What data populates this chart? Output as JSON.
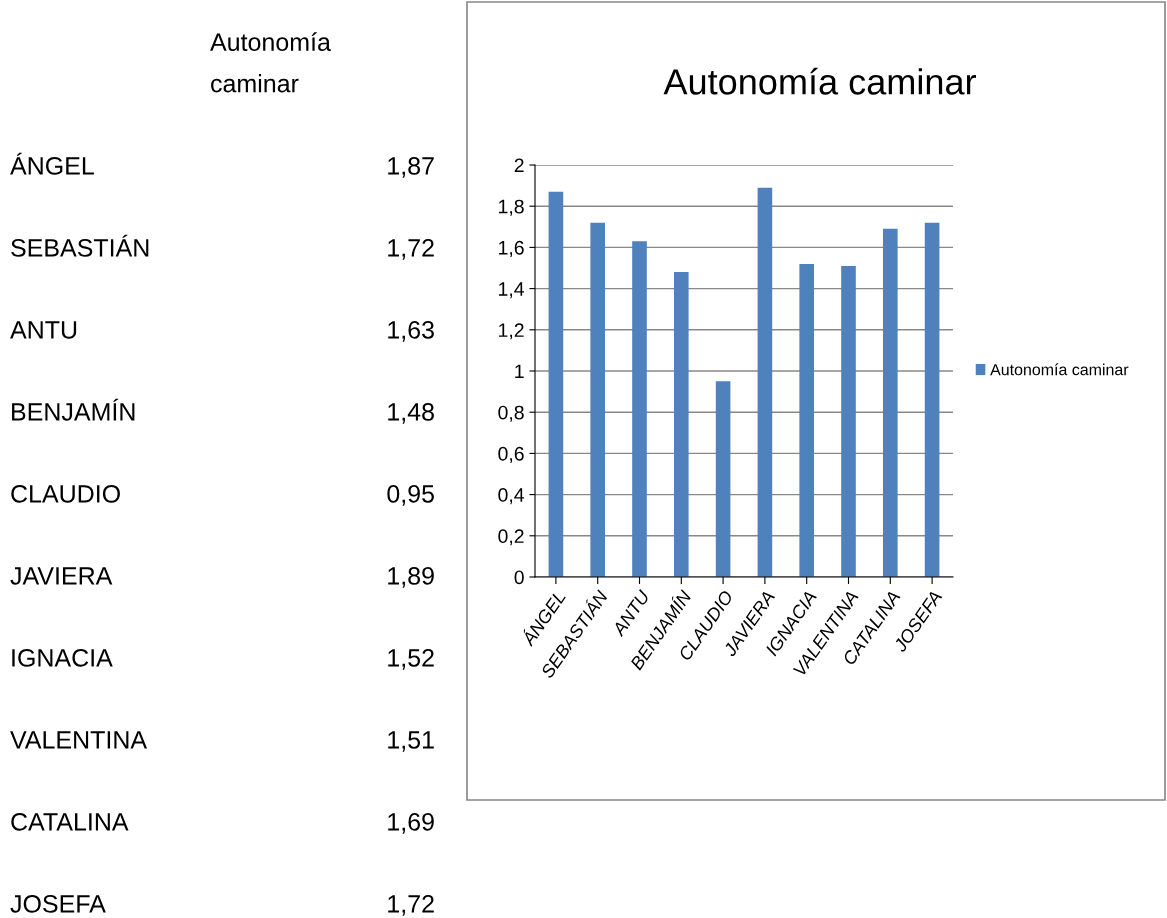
{
  "chart_data": {
    "type": "bar",
    "title": "Autonomía caminar",
    "categories": [
      "ÁNGEL",
      "SEBASTIÁN",
      "ANTU",
      "BENJAMÍN",
      "CLAUDIO",
      "JAVIERA",
      "IGNACIA",
      "VALENTINA",
      "CATALINA",
      "JOSEFA"
    ],
    "series": [
      {
        "name": "Autonomía caminar",
        "color": "#4f81bd",
        "values": [
          1.87,
          1.72,
          1.63,
          1.48,
          0.95,
          1.89,
          1.52,
          1.51,
          1.69,
          1.72
        ]
      }
    ],
    "value_labels": [
      "1,87",
      "1,72",
      "1,63",
      "1,48",
      "0,95",
      "1,89",
      "1,52",
      "1,51",
      "1,69",
      "1,72"
    ],
    "annotations": [
      "Autonomía\ncaminar"
    ],
    "ylim": [
      0,
      2
    ],
    "yticks": [
      0,
      {
        "value": 0.2,
        "label": "0,2"
      },
      {
        "value": 0.4,
        "label": "0,4"
      },
      {
        "value": 0.6,
        "label": "0,6"
      },
      {
        "value": 0.8,
        "label": "0,8"
      },
      1,
      {
        "value": 1.2,
        "label": "1,2"
      },
      {
        "value": 1.4,
        "label": "1,4"
      },
      {
        "value": 1.6,
        "label": "1,6"
      },
      {
        "value": 1.8,
        "label": "1,8"
      },
      2
    ],
    "grid": "y",
    "legend": "right"
  }
}
